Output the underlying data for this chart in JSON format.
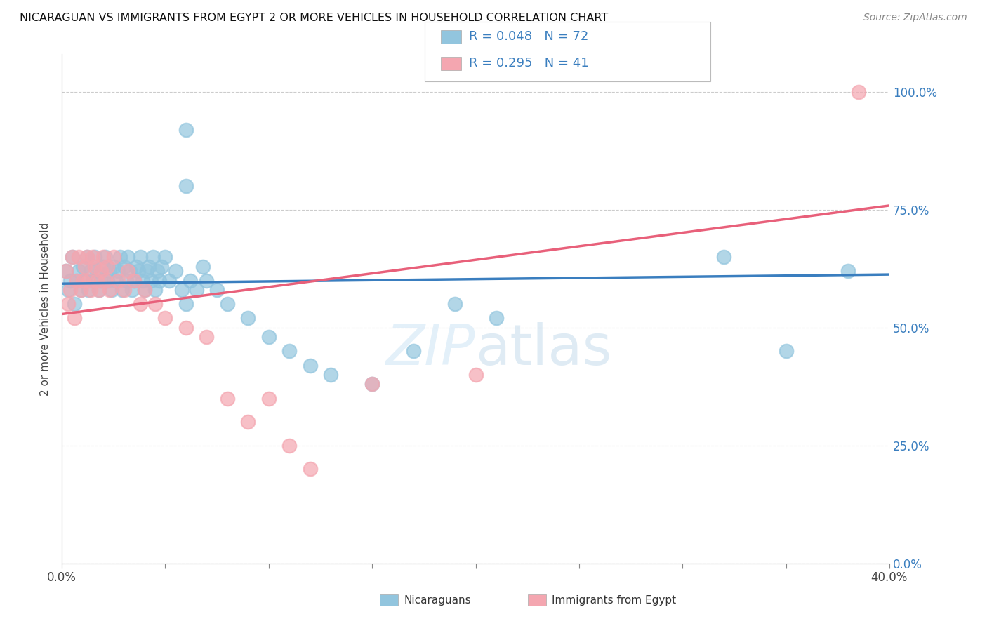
{
  "title": "NICARAGUAN VS IMMIGRANTS FROM EGYPT 2 OR MORE VEHICLES IN HOUSEHOLD CORRELATION CHART",
  "source": "Source: ZipAtlas.com",
  "ylabel": "2 or more Vehicles in Household",
  "ytick_values": [
    0.0,
    0.25,
    0.5,
    0.75,
    1.0
  ],
  "ytick_labels": [
    "0.0%",
    "25.0%",
    "50.0%",
    "75.0%",
    "100.0%"
  ],
  "xmin": 0.0,
  "xmax": 0.4,
  "ymin": 0.0,
  "ymax": 1.08,
  "blue_color": "#92c5de",
  "blue_line_color": "#3a7ebf",
  "pink_color": "#f4a6b0",
  "pink_line_color": "#e8607a",
  "blue_R": 0.048,
  "blue_N": 72,
  "pink_R": 0.295,
  "pink_N": 41,
  "legend_label_blue": "Nicaraguans",
  "legend_label_pink": "Immigrants from Egypt",
  "watermark_zip": "ZIP",
  "watermark_atlas": "atlas",
  "grid_color": "#cccccc",
  "blue_x": [
    0.002,
    0.003,
    0.004,
    0.005,
    0.006,
    0.007,
    0.008,
    0.009,
    0.01,
    0.011,
    0.012,
    0.013,
    0.014,
    0.015,
    0.016,
    0.017,
    0.018,
    0.019,
    0.02,
    0.021,
    0.022,
    0.023,
    0.024,
    0.025,
    0.026,
    0.027,
    0.028,
    0.029,
    0.03,
    0.031,
    0.032,
    0.033,
    0.034,
    0.035,
    0.036,
    0.037,
    0.038,
    0.039,
    0.04,
    0.041,
    0.042,
    0.043,
    0.044,
    0.045,
    0.046,
    0.047,
    0.048,
    0.05,
    0.052,
    0.055,
    0.058,
    0.06,
    0.062,
    0.065,
    0.068,
    0.07,
    0.075,
    0.08,
    0.09,
    0.1,
    0.11,
    0.12,
    0.13,
    0.15,
    0.17,
    0.19,
    0.21,
    0.06,
    0.32,
    0.35,
    0.38,
    0.06
  ],
  "blue_y": [
    0.62,
    0.58,
    0.6,
    0.65,
    0.55,
    0.6,
    0.62,
    0.58,
    0.63,
    0.6,
    0.65,
    0.58,
    0.62,
    0.6,
    0.65,
    0.62,
    0.58,
    0.6,
    0.63,
    0.65,
    0.6,
    0.62,
    0.58,
    0.63,
    0.6,
    0.62,
    0.65,
    0.58,
    0.63,
    0.6,
    0.65,
    0.62,
    0.58,
    0.6,
    0.63,
    0.62,
    0.65,
    0.6,
    0.58,
    0.62,
    0.63,
    0.6,
    0.65,
    0.58,
    0.62,
    0.6,
    0.63,
    0.65,
    0.6,
    0.62,
    0.58,
    0.55,
    0.6,
    0.58,
    0.63,
    0.6,
    0.58,
    0.55,
    0.52,
    0.48,
    0.45,
    0.42,
    0.4,
    0.38,
    0.45,
    0.55,
    0.52,
    0.8,
    0.65,
    0.45,
    0.62,
    0.92
  ],
  "pink_x": [
    0.002,
    0.003,
    0.004,
    0.005,
    0.006,
    0.007,
    0.008,
    0.009,
    0.01,
    0.011,
    0.012,
    0.013,
    0.014,
    0.015,
    0.016,
    0.017,
    0.018,
    0.019,
    0.02,
    0.021,
    0.022,
    0.023,
    0.025,
    0.027,
    0.03,
    0.032,
    0.035,
    0.038,
    0.04,
    0.045,
    0.05,
    0.06,
    0.07,
    0.08,
    0.09,
    0.1,
    0.11,
    0.12,
    0.15,
    0.2,
    0.385
  ],
  "pink_y": [
    0.62,
    0.55,
    0.58,
    0.65,
    0.52,
    0.6,
    0.65,
    0.58,
    0.6,
    0.63,
    0.65,
    0.6,
    0.58,
    0.65,
    0.63,
    0.6,
    0.58,
    0.62,
    0.65,
    0.6,
    0.63,
    0.58,
    0.65,
    0.6,
    0.58,
    0.62,
    0.6,
    0.55,
    0.58,
    0.55,
    0.52,
    0.5,
    0.48,
    0.35,
    0.3,
    0.35,
    0.25,
    0.2,
    0.38,
    0.4,
    1.0
  ]
}
